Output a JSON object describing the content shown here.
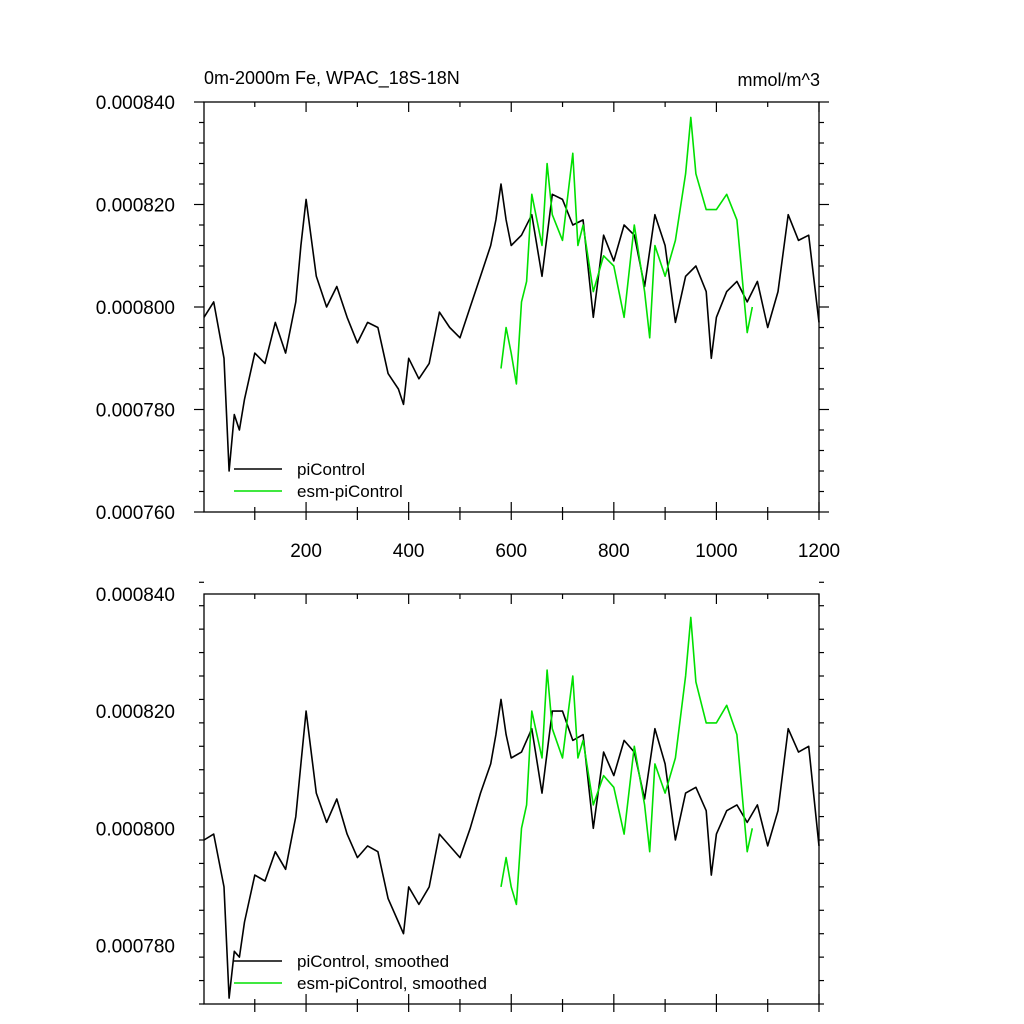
{
  "chart_data": [
    {
      "type": "line",
      "title": "0m-2000m Fe, WPAC_18S-18N",
      "units": "mmol/m^3",
      "xlim": [
        1,
        1200
      ],
      "ylim": [
        0.00076,
        0.00084
      ],
      "x_ticks": [
        200,
        400,
        600,
        800,
        1000,
        1200
      ],
      "x_tick_labels": [
        "200",
        "400",
        "600",
        "800",
        "1000",
        "1200"
      ],
      "y_ticks": [
        0.00076,
        0.00078,
        0.0008,
        0.00082,
        0.00084
      ],
      "y_tick_labels": [
        "0.000760",
        "0.000780",
        "0.000800",
        "0.000820",
        "0.000840"
      ],
      "legend_position": "bottom-left",
      "series": [
        {
          "name": "piControl",
          "color": "#000000",
          "x": [
            1,
            20,
            40,
            50,
            60,
            70,
            80,
            100,
            120,
            140,
            160,
            180,
            190,
            200,
            220,
            240,
            260,
            280,
            300,
            320,
            340,
            360,
            380,
            390,
            400,
            420,
            440,
            460,
            480,
            500,
            520,
            540,
            560,
            570,
            580,
            590,
            600,
            620,
            640,
            660,
            680,
            700,
            720,
            740,
            760,
            780,
            800,
            820,
            840,
            860,
            880,
            900,
            920,
            940,
            960,
            980,
            990,
            1000,
            1020,
            1040,
            1060,
            1080,
            1100,
            1120,
            1140,
            1160,
            1180,
            1200
          ],
          "values": [
            0.000798,
            0.000801,
            0.00079,
            0.000768,
            0.000779,
            0.000776,
            0.000782,
            0.000791,
            0.000789,
            0.000797,
            0.000791,
            0.000801,
            0.000812,
            0.000821,
            0.000806,
            0.0008,
            0.000804,
            0.000798,
            0.000793,
            0.000797,
            0.000796,
            0.000787,
            0.000784,
            0.000781,
            0.00079,
            0.000786,
            0.000789,
            0.000799,
            0.000796,
            0.000794,
            0.0008,
            0.000806,
            0.000812,
            0.000817,
            0.000824,
            0.000817,
            0.000812,
            0.000814,
            0.000818,
            0.000806,
            0.000822,
            0.000821,
            0.000816,
            0.000817,
            0.000798,
            0.000814,
            0.000809,
            0.000816,
            0.000814,
            0.000804,
            0.000818,
            0.000812,
            0.000797,
            0.000806,
            0.000808,
            0.000803,
            0.00079,
            0.000798,
            0.000803,
            0.000805,
            0.000801,
            0.000805,
            0.000796,
            0.000803,
            0.000818,
            0.000813,
            0.000814,
            0.000797
          ]
        },
        {
          "name": "esm-piControl",
          "color": "#00e000",
          "x": [
            580,
            590,
            600,
            610,
            620,
            630,
            640,
            660,
            670,
            680,
            700,
            720,
            730,
            740,
            760,
            780,
            800,
            820,
            840,
            860,
            870,
            880,
            900,
            920,
            940,
            950,
            960,
            980,
            1000,
            1020,
            1040,
            1060,
            1070
          ],
          "values": [
            0.000788,
            0.000796,
            0.000791,
            0.000785,
            0.000801,
            0.000805,
            0.000822,
            0.000812,
            0.000828,
            0.000818,
            0.000813,
            0.00083,
            0.000812,
            0.000816,
            0.000803,
            0.00081,
            0.000808,
            0.000798,
            0.000816,
            0.000803,
            0.000794,
            0.000812,
            0.000806,
            0.000813,
            0.000826,
            0.000837,
            0.000826,
            0.000819,
            0.000819,
            0.000822,
            0.000817,
            0.000795,
            0.0008
          ]
        }
      ]
    },
    {
      "type": "line",
      "xlim": [
        1,
        1200
      ],
      "ylim": [
        0.00077,
        0.00084
      ],
      "y_ticks": [
        0.00078,
        0.0008,
        0.00082,
        0.00084
      ],
      "y_tick_labels": [
        "0.000780",
        "0.000800",
        "0.000820",
        "0.000840"
      ],
      "legend_position": "bottom-left",
      "series": [
        {
          "name": "piControl, smoothed",
          "color": "#000000",
          "x": [
            1,
            20,
            40,
            50,
            60,
            70,
            80,
            100,
            120,
            140,
            160,
            180,
            190,
            200,
            220,
            240,
            260,
            280,
            300,
            320,
            340,
            360,
            380,
            390,
            400,
            420,
            440,
            460,
            480,
            500,
            520,
            540,
            560,
            570,
            580,
            590,
            600,
            620,
            640,
            660,
            680,
            700,
            720,
            740,
            760,
            780,
            800,
            820,
            840,
            860,
            880,
            900,
            920,
            940,
            960,
            980,
            990,
            1000,
            1020,
            1040,
            1060,
            1080,
            1100,
            1120,
            1140,
            1160,
            1180,
            1200
          ],
          "values": [
            0.000798,
            0.000799,
            0.00079,
            0.000771,
            0.000779,
            0.000778,
            0.000784,
            0.000792,
            0.000791,
            0.000796,
            0.000793,
            0.000802,
            0.000811,
            0.00082,
            0.000806,
            0.000801,
            0.000805,
            0.000799,
            0.000795,
            0.000797,
            0.000796,
            0.000788,
            0.000784,
            0.000782,
            0.00079,
            0.000787,
            0.00079,
            0.000799,
            0.000797,
            0.000795,
            0.0008,
            0.000806,
            0.000811,
            0.000816,
            0.000822,
            0.000816,
            0.000812,
            0.000813,
            0.000817,
            0.000806,
            0.00082,
            0.00082,
            0.000815,
            0.000816,
            0.0008,
            0.000813,
            0.000809,
            0.000815,
            0.000813,
            0.000805,
            0.000817,
            0.000811,
            0.000798,
            0.000806,
            0.000807,
            0.000803,
            0.000792,
            0.000799,
            0.000803,
            0.000804,
            0.000801,
            0.000804,
            0.000797,
            0.000803,
            0.000817,
            0.000813,
            0.000814,
            0.000797
          ]
        },
        {
          "name": "esm-piControl, smoothed",
          "color": "#00e000",
          "x": [
            580,
            590,
            600,
            610,
            620,
            630,
            640,
            660,
            670,
            680,
            700,
            720,
            730,
            740,
            760,
            780,
            800,
            820,
            840,
            860,
            870,
            880,
            900,
            920,
            940,
            950,
            960,
            980,
            1000,
            1020,
            1040,
            1060,
            1070
          ],
          "values": [
            0.00079,
            0.000795,
            0.00079,
            0.000787,
            0.0008,
            0.000804,
            0.00082,
            0.000812,
            0.000827,
            0.000817,
            0.000812,
            0.000826,
            0.000812,
            0.000815,
            0.000804,
            0.000809,
            0.000807,
            0.000799,
            0.000814,
            0.000804,
            0.000796,
            0.000811,
            0.000806,
            0.000812,
            0.000826,
            0.000836,
            0.000825,
            0.000818,
            0.000818,
            0.000821,
            0.000816,
            0.000796,
            0.0008
          ]
        }
      ]
    }
  ]
}
